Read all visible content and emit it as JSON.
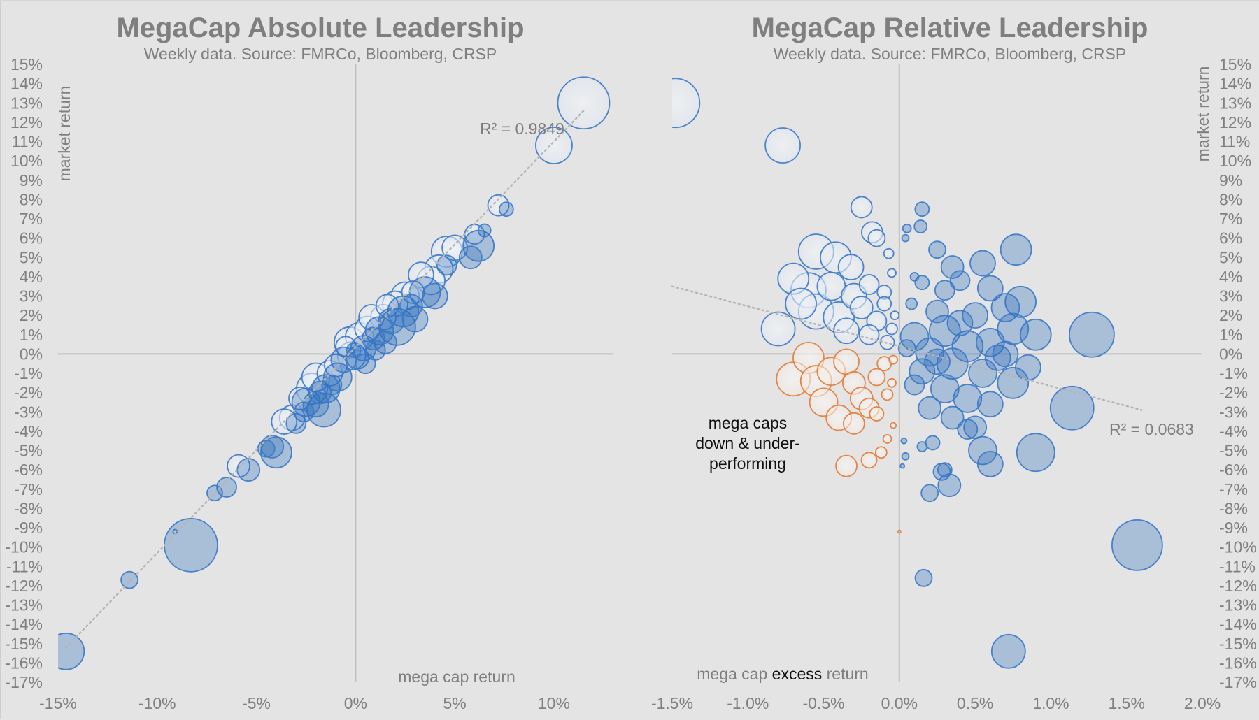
{
  "colors": {
    "background": "#e4e4e4",
    "axis_line": "#bfbfbf",
    "text": "#7f7f7f",
    "blue_outline": "#3a78c8",
    "blue_fill_dark": "#2e6fbf",
    "blue_fill_light": "#e4ebf4",
    "orange_outline": "#e07b39",
    "orange_fill": "#f7ede6",
    "trend": "#b8b8b8"
  },
  "chart_data": [
    {
      "type": "scatter",
      "subtype": "bubble",
      "title": "MegaCap Absolute Leadership",
      "subtitle": "Weekly data.   Source: FMRCo, Bloomberg, CRSP",
      "xlabel": "mega cap return",
      "ylabel": "market return",
      "x_ticks": [
        "-15%",
        "-10%",
        "-5%",
        "0%",
        "5%",
        "10%"
      ],
      "x_tick_values": [
        -15,
        -10,
        -5,
        0,
        5,
        10
      ],
      "y_ticks": [
        "15%",
        "14%",
        "13%",
        "12%",
        "11%",
        "10%",
        "9%",
        "8%",
        "7%",
        "6%",
        "5%",
        "4%",
        "3%",
        "2%",
        "1%",
        "0%",
        "-1%",
        "-2%",
        "-3%",
        "-4%",
        "-5%",
        "-6%",
        "-7%",
        "-8%",
        "-9%",
        "-10%",
        "-11%",
        "-12%",
        "-13%",
        "-14%",
        "-15%",
        "-16%",
        "-17%"
      ],
      "y_tick_values": [
        15,
        14,
        13,
        12,
        11,
        10,
        9,
        8,
        7,
        6,
        5,
        4,
        3,
        2,
        1,
        0,
        -1,
        -2,
        -3,
        -4,
        -5,
        -6,
        -7,
        -8,
        -9,
        -10,
        -11,
        -12,
        -13,
        -14,
        -15,
        -16,
        -17
      ],
      "xlim": [
        -15,
        13
      ],
      "ylim": [
        -17,
        15
      ],
      "y_axis_side": "left",
      "trendline": {
        "style": "dotted",
        "x": [
          -14.6,
          11.5
        ],
        "y": [
          -15.2,
          12.6
        ],
        "label": "R² = 0.9849"
      },
      "legend": null,
      "series_note": "light = mega caps underperforming (hollow), dark = mega caps outperforming (filled); bubble size ∝ magnitude",
      "points": [
        [
          11.5,
          13.0,
          37,
          "light"
        ],
        [
          10.0,
          10.8,
          26,
          "light"
        ],
        [
          7.2,
          7.7,
          15,
          "light"
        ],
        [
          7.6,
          7.5,
          10,
          "dark"
        ],
        [
          6.5,
          6.4,
          9,
          "dark"
        ],
        [
          6.0,
          6.2,
          14,
          "light"
        ],
        [
          6.2,
          5.6,
          22,
          "dark"
        ],
        [
          5.8,
          5.0,
          16,
          "dark"
        ],
        [
          4.6,
          5.3,
          22,
          "light"
        ],
        [
          5.0,
          5.5,
          18,
          "light"
        ],
        [
          4.2,
          4.4,
          20,
          "light"
        ],
        [
          4.6,
          4.6,
          14,
          "dark"
        ],
        [
          3.3,
          4.1,
          18,
          "light"
        ],
        [
          3.8,
          3.8,
          20,
          "light"
        ],
        [
          3.5,
          3.2,
          22,
          "dark"
        ],
        [
          2.9,
          3.2,
          16,
          "light"
        ],
        [
          2.5,
          3.0,
          20,
          "light"
        ],
        [
          2.4,
          2.2,
          22,
          "dark"
        ],
        [
          2.1,
          1.4,
          26,
          "dark"
        ],
        [
          2.0,
          2.6,
          18,
          "light"
        ],
        [
          1.6,
          2.5,
          16,
          "light"
        ],
        [
          1.4,
          1.9,
          18,
          "light"
        ],
        [
          1.8,
          1.7,
          18,
          "dark"
        ],
        [
          1.2,
          1.2,
          20,
          "dark"
        ],
        [
          0.6,
          1.3,
          18,
          "light"
        ],
        [
          0.2,
          0.9,
          20,
          "light"
        ],
        [
          -0.3,
          0.6,
          22,
          "light"
        ],
        [
          0.9,
          0.8,
          16,
          "dark"
        ],
        [
          0.4,
          0.3,
          18,
          "dark"
        ],
        [
          -0.2,
          -0.1,
          20,
          "light"
        ],
        [
          0.1,
          -0.2,
          16,
          "dark"
        ],
        [
          -0.6,
          -0.3,
          18,
          "dark"
        ],
        [
          -1.0,
          -0.6,
          16,
          "light"
        ],
        [
          -0.9,
          -1.2,
          20,
          "dark"
        ],
        [
          -1.3,
          -1.0,
          18,
          "light"
        ],
        [
          -1.5,
          -1.8,
          20,
          "dark"
        ],
        [
          -2.0,
          -1.2,
          20,
          "light"
        ],
        [
          -2.2,
          -1.8,
          22,
          "light"
        ],
        [
          -2.0,
          -2.6,
          18,
          "dark"
        ],
        [
          -2.5,
          -2.5,
          20,
          "dark"
        ],
        [
          -1.6,
          -2.9,
          24,
          "dark"
        ],
        [
          -2.8,
          -2.3,
          16,
          "light"
        ],
        [
          -3.2,
          -3.3,
          18,
          "light"
        ],
        [
          -3.6,
          -3.5,
          18,
          "light"
        ],
        [
          -3.0,
          -3.6,
          14,
          "dark"
        ],
        [
          -4.2,
          -4.8,
          16,
          "dark"
        ],
        [
          -4.0,
          -5.1,
          22,
          "dark"
        ],
        [
          -4.5,
          -4.9,
          12,
          "dark"
        ],
        [
          -5.9,
          -5.8,
          16,
          "light"
        ],
        [
          -5.4,
          -6.0,
          16,
          "dark"
        ],
        [
          -6.5,
          -6.9,
          14,
          "dark"
        ],
        [
          -7.1,
          -7.2,
          11,
          "dark"
        ],
        [
          -8.3,
          -9.9,
          38,
          "dark"
        ],
        [
          -9.1,
          -9.2,
          3,
          "light"
        ],
        [
          -11.4,
          -11.7,
          12,
          "dark"
        ],
        [
          -14.6,
          -15.4,
          26,
          "dark"
        ],
        [
          0.8,
          1.9,
          18,
          "light"
        ],
        [
          1.0,
          0.2,
          14,
          "dark"
        ],
        [
          0.5,
          -0.5,
          14,
          "dark"
        ],
        [
          -0.5,
          0.4,
          14,
          "light"
        ],
        [
          2.8,
          2.5,
          16,
          "dark"
        ],
        [
          3.0,
          1.8,
          18,
          "dark"
        ],
        [
          1.5,
          0.6,
          16,
          "dark"
        ],
        [
          -1.2,
          -1.6,
          14,
          "dark"
        ],
        [
          -1.8,
          -2.0,
          16,
          "dark"
        ],
        [
          -2.6,
          -3.0,
          14,
          "dark"
        ],
        [
          4.0,
          3.0,
          18,
          "dark"
        ],
        [
          -0.1,
          0.2,
          10,
          "dark"
        ]
      ]
    },
    {
      "type": "scatter",
      "subtype": "bubble",
      "title": "MegaCap Relative Leadership",
      "subtitle": "Weekly data.   Source: FMRCo, Bloomberg, CRSP",
      "xlabel_parts": [
        "mega cap ",
        "excess",
        " return"
      ],
      "ylabel": "market return",
      "x_ticks": [
        "-1.5%",
        "-1.0%",
        "-0.5%",
        "0.0%",
        "0.5%",
        "1.0%",
        "1.5%",
        "2.0%"
      ],
      "x_tick_values": [
        -1.5,
        -1.0,
        -0.5,
        0.0,
        0.5,
        1.0,
        1.5,
        2.0
      ],
      "y_ticks": [
        "15%",
        "14%",
        "13%",
        "12%",
        "11%",
        "10%",
        "9%",
        "8%",
        "7%",
        "6%",
        "5%",
        "4%",
        "3%",
        "2%",
        "1%",
        "0%",
        "-1%",
        "-2%",
        "-3%",
        "-4%",
        "-5%",
        "-6%",
        "-7%",
        "-8%",
        "-9%",
        "-10%",
        "-11%",
        "-12%",
        "-13%",
        "-14%",
        "-15%",
        "-16%",
        "-17%"
      ],
      "y_tick_values": [
        15,
        14,
        13,
        12,
        11,
        10,
        9,
        8,
        7,
        6,
        5,
        4,
        3,
        2,
        1,
        0,
        -1,
        -2,
        -3,
        -4,
        -5,
        -6,
        -7,
        -8,
        -9,
        -10,
        -11,
        -12,
        -13,
        -14,
        -15,
        -16,
        -17
      ],
      "xlim": [
        -1.5,
        2.0
      ],
      "ylim": [
        -17,
        15
      ],
      "y_axis_side": "right",
      "trendline": {
        "style": "dotted",
        "x": [
          -1.5,
          1.6
        ],
        "y": [
          3.5,
          -2.9
        ],
        "label": "R² = 0.0683"
      },
      "annotation": [
        "mega caps",
        "down & under-",
        "performing"
      ],
      "series_note": "light = mega caps up but underperforming, orange = mega caps down & underperforming, dark = outperforming",
      "points": [
        [
          -1.48,
          13.0,
          35,
          "light"
        ],
        [
          -0.77,
          10.8,
          25,
          "light"
        ],
        [
          -0.25,
          7.6,
          15,
          "light"
        ],
        [
          -0.18,
          6.3,
          15,
          "light"
        ],
        [
          -0.15,
          6.0,
          12,
          "light"
        ],
        [
          -0.07,
          5.2,
          7,
          "light"
        ],
        [
          -0.55,
          5.3,
          25,
          "light"
        ],
        [
          -0.42,
          5.0,
          22,
          "light"
        ],
        [
          -0.32,
          4.5,
          18,
          "light"
        ],
        [
          -0.7,
          3.9,
          22,
          "light"
        ],
        [
          -0.6,
          3.3,
          25,
          "light"
        ],
        [
          -0.45,
          3.5,
          20,
          "light"
        ],
        [
          -0.3,
          3.0,
          18,
          "light"
        ],
        [
          -0.2,
          3.6,
          14,
          "light"
        ],
        [
          -0.1,
          3.2,
          10,
          "light"
        ],
        [
          -0.05,
          4.2,
          6,
          "light"
        ],
        [
          -0.8,
          1.3,
          24,
          "light"
        ],
        [
          -0.55,
          2.2,
          25,
          "light"
        ],
        [
          -0.4,
          1.9,
          22,
          "light"
        ],
        [
          -0.25,
          2.4,
          16,
          "light"
        ],
        [
          -0.15,
          1.7,
          14,
          "light"
        ],
        [
          -0.1,
          2.6,
          10,
          "light"
        ],
        [
          -0.05,
          1.3,
          8,
          "light"
        ],
        [
          -0.65,
          2.6,
          22,
          "light"
        ],
        [
          -0.35,
          1.2,
          18,
          "light"
        ],
        [
          -0.2,
          1.0,
          14,
          "light"
        ],
        [
          -0.08,
          0.6,
          10,
          "light"
        ],
        [
          -0.03,
          2.0,
          6,
          "light"
        ],
        [
          -0.6,
          -0.2,
          22,
          "orange"
        ],
        [
          -0.7,
          -1.3,
          24,
          "orange"
        ],
        [
          -0.55,
          -1.4,
          22,
          "orange"
        ],
        [
          -0.45,
          -0.9,
          20,
          "orange"
        ],
        [
          -0.35,
          -0.4,
          18,
          "orange"
        ],
        [
          -0.3,
          -1.5,
          16,
          "orange"
        ],
        [
          -0.25,
          -2.3,
          16,
          "orange"
        ],
        [
          -0.15,
          -1.2,
          12,
          "orange"
        ],
        [
          -0.1,
          -0.5,
          10,
          "orange"
        ],
        [
          -0.08,
          -2.1,
          8,
          "orange"
        ],
        [
          -0.05,
          -1.5,
          6,
          "orange"
        ],
        [
          -0.4,
          -3.3,
          18,
          "orange"
        ],
        [
          -0.3,
          -3.6,
          15,
          "orange"
        ],
        [
          -0.15,
          -3.1,
          10,
          "orange"
        ],
        [
          -0.08,
          -4.4,
          6,
          "orange"
        ],
        [
          -0.12,
          -5.1,
          8,
          "orange"
        ],
        [
          -0.2,
          -5.5,
          11,
          "orange"
        ],
        [
          -0.35,
          -5.8,
          15,
          "orange"
        ],
        [
          -0.04,
          -3.7,
          4,
          "orange"
        ],
        [
          0.0,
          -9.2,
          2,
          "orange"
        ],
        [
          -0.5,
          -2.5,
          20,
          "orange"
        ],
        [
          -0.2,
          -2.8,
          14,
          "orange"
        ],
        [
          -0.04,
          -0.3,
          6,
          "orange"
        ],
        [
          0.15,
          7.5,
          10,
          "dark"
        ],
        [
          0.14,
          6.6,
          9,
          "dark"
        ],
        [
          0.05,
          6.5,
          6,
          "dark"
        ],
        [
          0.04,
          6.0,
          5,
          "dark"
        ],
        [
          0.77,
          5.4,
          22,
          "dark"
        ],
        [
          0.55,
          4.7,
          18,
          "dark"
        ],
        [
          0.35,
          4.5,
          16,
          "dark"
        ],
        [
          0.25,
          5.4,
          12,
          "dark"
        ],
        [
          0.6,
          3.4,
          18,
          "dark"
        ],
        [
          0.8,
          2.7,
          22,
          "dark"
        ],
        [
          0.7,
          2.4,
          20,
          "dark"
        ],
        [
          0.5,
          2.0,
          18,
          "dark"
        ],
        [
          0.3,
          3.3,
          14,
          "dark"
        ],
        [
          0.15,
          3.7,
          10,
          "dark"
        ],
        [
          0.9,
          1.0,
          22,
          "dark"
        ],
        [
          0.75,
          1.3,
          22,
          "dark"
        ],
        [
          1.27,
          1.0,
          32,
          "dark"
        ],
        [
          0.3,
          1.2,
          22,
          "dark"
        ],
        [
          0.1,
          0.9,
          20,
          "dark"
        ],
        [
          0.45,
          0.4,
          22,
          "dark"
        ],
        [
          0.2,
          0.1,
          20,
          "dark"
        ],
        [
          0.6,
          0.6,
          20,
          "dark"
        ],
        [
          0.35,
          -0.5,
          22,
          "dark"
        ],
        [
          0.15,
          -0.9,
          18,
          "dark"
        ],
        [
          0.55,
          -1.0,
          20,
          "dark"
        ],
        [
          0.75,
          -1.5,
          22,
          "dark"
        ],
        [
          0.3,
          -1.8,
          20,
          "dark"
        ],
        [
          0.1,
          -1.6,
          14,
          "dark"
        ],
        [
          0.45,
          -2.3,
          20,
          "dark"
        ],
        [
          0.6,
          -2.6,
          18,
          "dark"
        ],
        [
          0.2,
          -2.8,
          16,
          "dark"
        ],
        [
          0.35,
          -3.3,
          16,
          "dark"
        ],
        [
          0.5,
          -3.8,
          16,
          "dark"
        ],
        [
          1.14,
          -2.8,
          31,
          "dark"
        ],
        [
          0.9,
          -5.1,
          27,
          "dark"
        ],
        [
          0.55,
          -5.0,
          20,
          "dark"
        ],
        [
          0.6,
          -5.7,
          18,
          "dark"
        ],
        [
          0.45,
          -3.9,
          14,
          "dark"
        ],
        [
          0.22,
          -4.6,
          10,
          "dark"
        ],
        [
          0.15,
          -4.8,
          7,
          "dark"
        ],
        [
          0.03,
          -4.5,
          4,
          "dark"
        ],
        [
          0.04,
          -5.3,
          5,
          "dark"
        ],
        [
          0.02,
          -5.8,
          3,
          "dark"
        ],
        [
          0.28,
          -6.1,
          12,
          "dark"
        ],
        [
          0.3,
          -6.0,
          10,
          "dark"
        ],
        [
          0.2,
          -7.2,
          12,
          "dark"
        ],
        [
          0.33,
          -6.8,
          16,
          "dark"
        ],
        [
          0.16,
          -11.6,
          12,
          "dark"
        ],
        [
          1.57,
          -9.9,
          36,
          "dark"
        ],
        [
          0.72,
          -15.4,
          24,
          "dark"
        ],
        [
          0.08,
          2.6,
          8,
          "dark"
        ],
        [
          0.05,
          0.3,
          12,
          "dark"
        ],
        [
          0.25,
          2.2,
          16,
          "dark"
        ],
        [
          0.4,
          1.6,
          18,
          "dark"
        ],
        [
          0.65,
          -0.2,
          18,
          "dark"
        ],
        [
          0.85,
          -0.7,
          18,
          "dark"
        ],
        [
          0.1,
          4.0,
          6,
          "dark"
        ],
        [
          0.4,
          3.8,
          14,
          "dark"
        ],
        [
          0.7,
          0.0,
          18,
          "dark"
        ],
        [
          0.25,
          -0.4,
          18,
          "dark"
        ]
      ]
    }
  ]
}
